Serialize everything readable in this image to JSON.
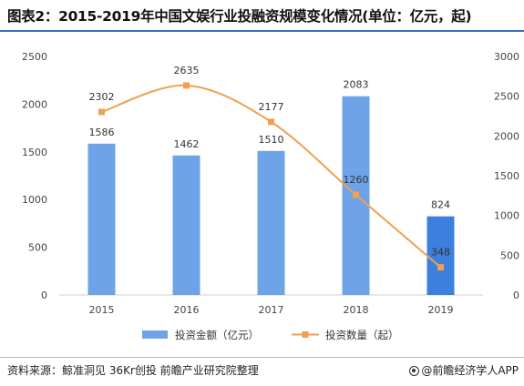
{
  "page": {
    "title": "图表2：2015-2019年中国文娱行业投融资规模变化情况(单位：亿元，起)",
    "source": "资料来源：鲸准洞见 36Kr创投 前瞻产业研究院整理",
    "brand": "@前瞻经济学人APP"
  },
  "colors": {
    "bar": "#6fa3e8",
    "bar_last": "#3d7fdc",
    "line": "#f0a050",
    "title_rule": "#3a6fc4"
  },
  "chart_data": {
    "type": "bar",
    "categories": [
      "2015",
      "2016",
      "2017",
      "2018",
      "2019"
    ],
    "series": [
      {
        "name": "投资金额（亿元）",
        "type": "bar",
        "axis": "left",
        "values": [
          1586,
          1462,
          1510,
          2083,
          824
        ]
      },
      {
        "name": "投资数量（起）",
        "type": "line",
        "axis": "right",
        "values": [
          2302,
          2635,
          2177,
          1260,
          348
        ]
      }
    ],
    "y_left": {
      "range": [
        0,
        2500
      ],
      "ticks": [
        0,
        500,
        1000,
        1500,
        2000,
        2500
      ]
    },
    "y_right": {
      "range": [
        0,
        3000
      ],
      "ticks": [
        0,
        500,
        1000,
        1500,
        2000,
        2500,
        3000
      ]
    },
    "grid": false,
    "legend_position": "bottom"
  }
}
